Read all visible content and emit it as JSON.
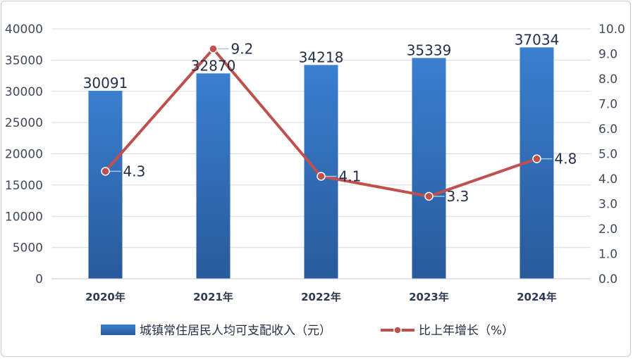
{
  "chart_data": {
    "type": "bar",
    "categories": [
      "2020年",
      "2021年",
      "2022年",
      "2023年",
      "2024年"
    ],
    "series": [
      {
        "name": "城镇常住居民人均可支配收入（元）",
        "type": "bar",
        "axis": "left",
        "values": [
          30091,
          32870,
          34218,
          35339,
          37034
        ],
        "labels": [
          "30091",
          "32870",
          "34218",
          "35339",
          "37034"
        ],
        "color": "#2f6db5"
      },
      {
        "name": "比上年增长（%）",
        "type": "line",
        "axis": "right",
        "values": [
          4.3,
          9.2,
          4.1,
          3.3,
          4.8
        ],
        "labels": [
          "4.3",
          "9.2",
          "4.1",
          "3.3",
          "4.8"
        ],
        "color": "#c0504d"
      }
    ],
    "y_left": {
      "range": [
        0,
        40000
      ],
      "ticks": [
        "0",
        "5000",
        "10000",
        "15000",
        "20000",
        "25000",
        "30000",
        "35000",
        "40000"
      ]
    },
    "y_right": {
      "range": [
        0,
        10
      ],
      "ticks": [
        "0.0",
        "1.0",
        "2.0",
        "3.0",
        "4.0",
        "5.0",
        "6.0",
        "7.0",
        "8.0",
        "9.0",
        "10.0"
      ]
    },
    "grid": "horizontal",
    "legend_position": "bottom"
  }
}
